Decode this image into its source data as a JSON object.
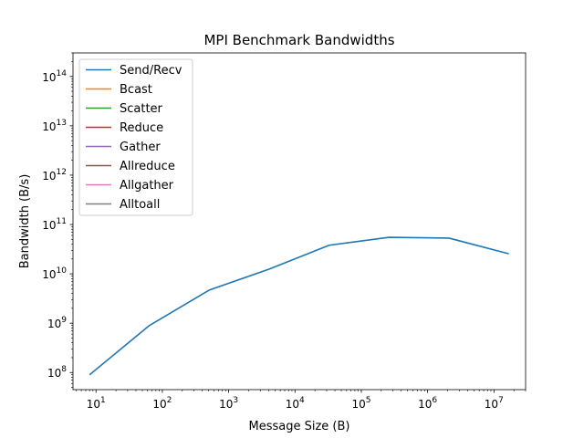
{
  "chart_data": {
    "type": "line",
    "title": "MPI Benchmark Bandwidths",
    "xlabel": "Message Size (B)",
    "ylabel": "Bandwidth (B/s)",
    "xscale": "log",
    "yscale": "log",
    "xlim": [
      4.5,
      30000000
    ],
    "ylim": [
      45000000,
      300000000000000
    ],
    "x_ticks": [
      {
        "value": 10,
        "base": "10",
        "exp": "1"
      },
      {
        "value": 100,
        "base": "10",
        "exp": "2"
      },
      {
        "value": 1000,
        "base": "10",
        "exp": "3"
      },
      {
        "value": 10000,
        "base": "10",
        "exp": "4"
      },
      {
        "value": 100000,
        "base": "10",
        "exp": "5"
      },
      {
        "value": 1000000,
        "base": "10",
        "exp": "6"
      },
      {
        "value": 10000000,
        "base": "10",
        "exp": "7"
      }
    ],
    "y_ticks": [
      {
        "value": 100000000,
        "base": "10",
        "exp": "8"
      },
      {
        "value": 1000000000,
        "base": "10",
        "exp": "9"
      },
      {
        "value": 10000000000,
        "base": "10",
        "exp": "10"
      },
      {
        "value": 100000000000,
        "base": "10",
        "exp": "11"
      },
      {
        "value": 1000000000000,
        "base": "10",
        "exp": "12"
      },
      {
        "value": 10000000000000,
        "base": "10",
        "exp": "13"
      },
      {
        "value": 100000000000000,
        "base": "10",
        "exp": "14"
      }
    ],
    "legend_position": "top-left",
    "grid": false,
    "series": [
      {
        "name": "Send/Recv",
        "color": "#1f77b4",
        "x": [
          8,
          64,
          512,
          4096,
          32768,
          262144,
          2097152,
          16777216
        ],
        "y": [
          90000000,
          900000000,
          4700000000,
          12500000000,
          38000000000,
          55000000000,
          53000000000,
          25500000000
        ]
      },
      {
        "name": "Bcast",
        "color": "#ff7f0e",
        "x": [],
        "y": []
      },
      {
        "name": "Scatter",
        "color": "#2ca02c",
        "x": [],
        "y": []
      },
      {
        "name": "Reduce",
        "color": "#d62728",
        "x": [],
        "y": []
      },
      {
        "name": "Gather",
        "color": "#9467bd",
        "x": [],
        "y": []
      },
      {
        "name": "Allreduce",
        "color": "#8c564b",
        "x": [],
        "y": []
      },
      {
        "name": "Allgather",
        "color": "#e377c2",
        "x": [],
        "y": []
      },
      {
        "name": "Alltoall",
        "color": "#7f7f7f",
        "x": [],
        "y": []
      }
    ]
  }
}
